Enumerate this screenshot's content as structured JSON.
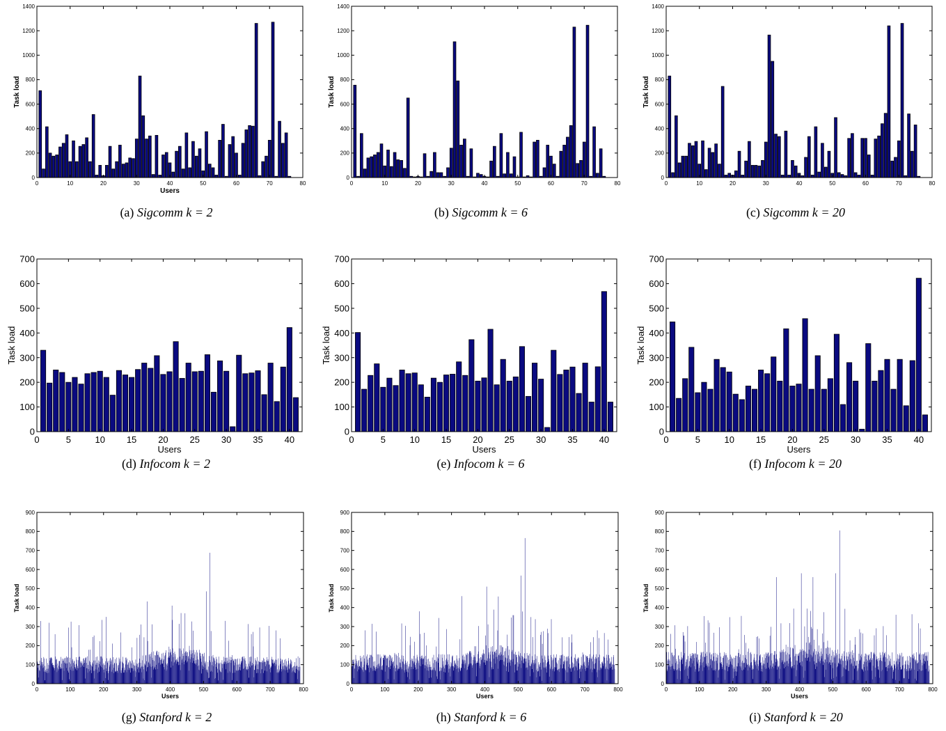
{
  "figure": {
    "panels": [
      {
        "label": "(a)",
        "dataset": "Sigcomm",
        "k_text": "k = 2"
      },
      {
        "label": "(b)",
        "dataset": "Sigcomm",
        "k_text": "k = 6"
      },
      {
        "label": "(c)",
        "dataset": "Sigcomm",
        "k_text": "k = 20"
      },
      {
        "label": "(d)",
        "dataset": "Infocom",
        "k_text": "k = 2"
      },
      {
        "label": "(e)",
        "dataset": "Infocom",
        "k_text": "k = 6"
      },
      {
        "label": "(f)",
        "dataset": "Infocom",
        "k_text": "k = 20"
      },
      {
        "label": "(g)",
        "dataset": "Stanford",
        "k_text": "k = 2"
      },
      {
        "label": "(h)",
        "dataset": "Stanford",
        "k_text": "k = 6"
      },
      {
        "label": "(i)",
        "dataset": "Stanford",
        "k_text": "k = 20"
      }
    ]
  },
  "colors": {
    "bar_fill": "#0a0a80",
    "bar_stroke": "#000000",
    "axis": "#000000"
  },
  "chart_data": [
    {
      "type": "bar",
      "xlabel": "Users",
      "ylabel": "Task load",
      "xlim": [
        0,
        80
      ],
      "ylim": [
        0,
        1400
      ],
      "xticks": [
        0,
        10,
        20,
        30,
        40,
        50,
        60,
        70,
        80
      ],
      "yticks": [
        0,
        200,
        400,
        600,
        800,
        1000,
        1200,
        1400
      ],
      "x": [
        1,
        2,
        3,
        4,
        5,
        6,
        7,
        8,
        9,
        10,
        11,
        12,
        13,
        14,
        15,
        16,
        17,
        18,
        19,
        20,
        21,
        22,
        23,
        24,
        25,
        26,
        27,
        28,
        29,
        30,
        31,
        32,
        33,
        34,
        35,
        36,
        37,
        38,
        39,
        40,
        41,
        42,
        43,
        44,
        45,
        46,
        47,
        48,
        49,
        50,
        51,
        52,
        53,
        54,
        55,
        56,
        57,
        58,
        59,
        60,
        61,
        62,
        63,
        64,
        65,
        66,
        67,
        68,
        69,
        70,
        71,
        72,
        73,
        74,
        75,
        76
      ],
      "values": [
        710,
        70,
        415,
        200,
        175,
        185,
        250,
        280,
        350,
        130,
        300,
        130,
        255,
        270,
        325,
        130,
        515,
        20,
        100,
        15,
        100,
        255,
        70,
        130,
        265,
        110,
        120,
        160,
        155,
        315,
        830,
        505,
        315,
        340,
        25,
        345,
        20,
        185,
        205,
        120,
        45,
        215,
        255,
        70,
        365,
        80,
        295,
        175,
        235,
        55,
        375,
        110,
        80,
        20,
        305,
        435,
        10,
        270,
        335,
        200,
        20,
        280,
        390,
        425,
        420,
        1260,
        15,
        130,
        175,
        305,
        1270,
        10,
        460,
        280,
        365,
        10
      ]
    },
    {
      "type": "bar",
      "xlabel": "",
      "ylabel": "Task load",
      "xlim": [
        0,
        80
      ],
      "ylim": [
        0,
        1400
      ],
      "xticks": [
        0,
        10,
        20,
        30,
        40,
        50,
        60,
        70,
        80
      ],
      "yticks": [
        0,
        200,
        400,
        600,
        800,
        1000,
        1200,
        1400
      ],
      "x": [
        1,
        2,
        3,
        4,
        5,
        6,
        7,
        8,
        9,
        10,
        11,
        12,
        13,
        14,
        15,
        16,
        17,
        18,
        19,
        20,
        21,
        22,
        23,
        24,
        25,
        26,
        27,
        28,
        29,
        30,
        31,
        32,
        33,
        34,
        35,
        36,
        37,
        38,
        39,
        40,
        41,
        42,
        43,
        44,
        45,
        46,
        47,
        48,
        49,
        50,
        51,
        52,
        53,
        54,
        55,
        56,
        57,
        58,
        59,
        60,
        61,
        62,
        63,
        64,
        65,
        66,
        67,
        68,
        69,
        70,
        71,
        72,
        73,
        74,
        75,
        76
      ],
      "values": [
        755,
        10,
        360,
        70,
        160,
        170,
        185,
        205,
        275,
        95,
        225,
        90,
        205,
        145,
        140,
        75,
        650,
        10,
        5,
        10,
        5,
        195,
        10,
        50,
        205,
        40,
        40,
        10,
        80,
        240,
        1110,
        790,
        265,
        315,
        10,
        235,
        5,
        35,
        25,
        10,
        5,
        135,
        255,
        10,
        360,
        30,
        205,
        30,
        170,
        5,
        370,
        5,
        15,
        5,
        290,
        305,
        10,
        80,
        265,
        175,
        110,
        10,
        215,
        265,
        330,
        425,
        1230,
        115,
        140,
        290,
        1245,
        10,
        415,
        35,
        235,
        10
      ]
    },
    {
      "type": "bar",
      "xlabel": "",
      "ylabel": "Task load",
      "xlim": [
        0,
        80
      ],
      "ylim": [
        0,
        1400
      ],
      "xticks": [
        0,
        10,
        20,
        30,
        40,
        50,
        60,
        70,
        80
      ],
      "yticks": [
        0,
        200,
        400,
        600,
        800,
        1000,
        1200,
        1400
      ],
      "x": [
        1,
        2,
        3,
        4,
        5,
        6,
        7,
        8,
        9,
        10,
        11,
        12,
        13,
        14,
        15,
        16,
        17,
        18,
        19,
        20,
        21,
        22,
        23,
        24,
        25,
        26,
        27,
        28,
        29,
        30,
        31,
        32,
        33,
        34,
        35,
        36,
        37,
        38,
        39,
        40,
        41,
        42,
        43,
        44,
        45,
        46,
        47,
        48,
        49,
        50,
        51,
        52,
        53,
        54,
        55,
        56,
        57,
        58,
        59,
        60,
        61,
        62,
        63,
        64,
        65,
        66,
        67,
        68,
        69,
        70,
        71,
        72,
        73,
        74,
        75,
        76
      ],
      "values": [
        830,
        40,
        505,
        120,
        175,
        175,
        280,
        260,
        295,
        110,
        300,
        65,
        240,
        205,
        275,
        110,
        745,
        20,
        35,
        20,
        55,
        215,
        20,
        135,
        295,
        100,
        100,
        95,
        140,
        290,
        1165,
        950,
        355,
        335,
        20,
        380,
        20,
        140,
        95,
        35,
        15,
        165,
        335,
        20,
        415,
        45,
        280,
        85,
        215,
        35,
        490,
        40,
        25,
        15,
        320,
        360,
        40,
        20,
        320,
        320,
        185,
        20,
        315,
        340,
        440,
        525,
        1240,
        135,
        165,
        300,
        1260,
        15,
        520,
        215,
        430,
        10
      ]
    },
    {
      "type": "bar",
      "xlabel": "Users",
      "ylabel": "Task load",
      "xlim": [
        0,
        42
      ],
      "ylim": [
        0,
        700
      ],
      "xticks": [
        0,
        5,
        10,
        15,
        20,
        25,
        30,
        35,
        40
      ],
      "yticks": [
        0,
        100,
        200,
        300,
        400,
        500,
        600,
        700
      ],
      "x": [
        1,
        2,
        3,
        4,
        5,
        6,
        7,
        8,
        9,
        10,
        11,
        12,
        13,
        14,
        15,
        16,
        17,
        18,
        19,
        20,
        21,
        22,
        23,
        24,
        25,
        26,
        27,
        28,
        29,
        30,
        31,
        32,
        33,
        34,
        35,
        36,
        37,
        38,
        39,
        40,
        41
      ],
      "values": [
        330,
        197,
        250,
        240,
        200,
        220,
        193,
        235,
        240,
        245,
        220,
        148,
        248,
        230,
        220,
        252,
        278,
        257,
        308,
        232,
        243,
        365,
        216,
        278,
        243,
        245,
        312,
        160,
        287,
        245,
        20,
        310,
        235,
        238,
        247,
        150,
        278,
        122,
        262,
        422,
        138
      ]
    },
    {
      "type": "bar",
      "xlabel": "Users",
      "ylabel": "Task load",
      "xlim": [
        0,
        42
      ],
      "ylim": [
        0,
        700
      ],
      "xticks": [
        0,
        5,
        10,
        15,
        20,
        25,
        30,
        35,
        40
      ],
      "yticks": [
        0,
        100,
        200,
        300,
        400,
        500,
        600,
        700
      ],
      "x": [
        1,
        2,
        3,
        4,
        5,
        6,
        7,
        8,
        9,
        10,
        11,
        12,
        13,
        14,
        15,
        16,
        17,
        18,
        19,
        20,
        21,
        22,
        23,
        24,
        25,
        26,
        27,
        28,
        29,
        30,
        31,
        32,
        33,
        34,
        35,
        36,
        37,
        38,
        39,
        40,
        41
      ],
      "values": [
        402,
        172,
        228,
        275,
        180,
        217,
        187,
        250,
        235,
        238,
        190,
        140,
        217,
        200,
        230,
        233,
        283,
        228,
        373,
        205,
        218,
        415,
        190,
        293,
        205,
        222,
        345,
        143,
        278,
        213,
        17,
        330,
        232,
        250,
        262,
        155,
        278,
        120,
        263,
        568,
        120
      ]
    },
    {
      "type": "bar",
      "xlabel": "Users",
      "ylabel": "Task load",
      "xlim": [
        0,
        42
      ],
      "ylim": [
        0,
        700
      ],
      "xticks": [
        0,
        5,
        10,
        15,
        20,
        25,
        30,
        35,
        40
      ],
      "yticks": [
        0,
        100,
        200,
        300,
        400,
        500,
        600,
        700
      ],
      "x": [
        1,
        2,
        3,
        4,
        5,
        6,
        7,
        8,
        9,
        10,
        11,
        12,
        13,
        14,
        15,
        16,
        17,
        18,
        19,
        20,
        21,
        22,
        23,
        24,
        25,
        26,
        27,
        28,
        29,
        30,
        31,
        32,
        33,
        34,
        35,
        36,
        37,
        38,
        39,
        40,
        41
      ],
      "values": [
        445,
        135,
        215,
        342,
        158,
        200,
        172,
        293,
        260,
        242,
        152,
        130,
        185,
        172,
        250,
        235,
        303,
        205,
        417,
        185,
        193,
        458,
        172,
        308,
        172,
        215,
        395,
        110,
        280,
        205,
        10,
        357,
        205,
        248,
        293,
        172,
        293,
        105,
        288,
        622,
        68
      ]
    },
    {
      "type": "bar",
      "xlabel": "Users",
      "ylabel": "Task load",
      "xlim": [
        0,
        800
      ],
      "ylim": [
        0,
        900
      ],
      "xticks": [
        0,
        100,
        200,
        300,
        400,
        500,
        600,
        700,
        800
      ],
      "yticks": [
        0,
        100,
        200,
        300,
        400,
        500,
        600,
        700,
        800,
        900
      ],
      "n_users": 790,
      "series_note_values": {
        "min": 0,
        "typical": 120,
        "peaks": [
          {
            "x": 518,
            "y": 688
          },
          {
            "x": 330,
            "y": 432
          },
          {
            "x": 405,
            "y": 410
          },
          {
            "x": 508,
            "y": 485
          },
          {
            "x": 36,
            "y": 320
          }
        ]
      }
    },
    {
      "type": "bar",
      "xlabel": "Users",
      "ylabel": "Task load",
      "xlim": [
        0,
        800
      ],
      "ylim": [
        0,
        900
      ],
      "xticks": [
        0,
        100,
        200,
        300,
        400,
        500,
        600,
        700,
        800
      ],
      "yticks": [
        0,
        100,
        200,
        300,
        400,
        500,
        600,
        700,
        800,
        900
      ],
      "n_users": 790,
      "series_note_values": {
        "min": 0,
        "typical": 130,
        "peaks": [
          {
            "x": 520,
            "y": 765
          },
          {
            "x": 508,
            "y": 568
          },
          {
            "x": 405,
            "y": 510
          },
          {
            "x": 330,
            "y": 460
          },
          {
            "x": 440,
            "y": 458
          }
        ]
      }
    },
    {
      "type": "bar",
      "xlabel": "Users",
      "ylabel": "Task load",
      "xlim": [
        0,
        800
      ],
      "ylim": [
        0,
        900
      ],
      "xticks": [
        0,
        100,
        200,
        300,
        400,
        500,
        600,
        700,
        800
      ],
      "yticks": [
        0,
        100,
        200,
        300,
        400,
        500,
        600,
        700,
        800,
        900
      ],
      "n_users": 790,
      "series_note_values": {
        "min": 0,
        "typical": 140,
        "peaks": [
          {
            "x": 520,
            "y": 805
          },
          {
            "x": 508,
            "y": 580
          },
          {
            "x": 405,
            "y": 580
          },
          {
            "x": 330,
            "y": 560
          },
          {
            "x": 440,
            "y": 560
          }
        ]
      }
    }
  ]
}
